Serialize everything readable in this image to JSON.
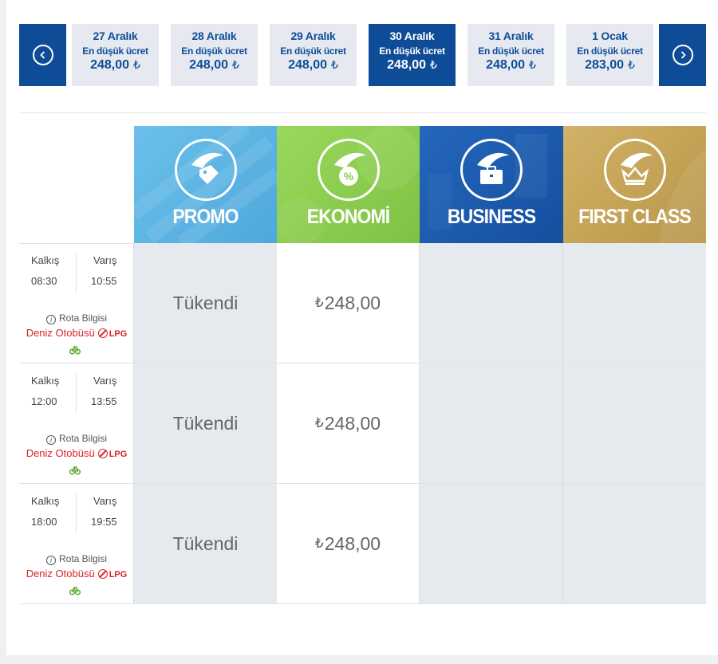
{
  "date_nav": {
    "prev_icon": "chevron-left-circle-icon",
    "next_icon": "chevron-right-circle-icon",
    "days": [
      {
        "date": "27 Aralık",
        "label": "En düşük ücret",
        "price": "248,00",
        "currency": "₺",
        "active": false
      },
      {
        "date": "28 Aralık",
        "label": "En düşük ücret",
        "price": "248,00",
        "currency": "₺",
        "active": false
      },
      {
        "date": "29 Aralık",
        "label": "En düşük ücret",
        "price": "248,00",
        "currency": "₺",
        "active": false
      },
      {
        "date": "30 Aralık",
        "label": "En düşük ücret",
        "price": "248,00",
        "currency": "₺",
        "active": true
      },
      {
        "date": "31 Aralık",
        "label": "En düşük ücret",
        "price": "248,00",
        "currency": "₺",
        "active": false
      },
      {
        "date": "1 Ocak",
        "label": "En düşük ücret",
        "price": "283,00",
        "currency": "₺",
        "active": false
      }
    ]
  },
  "classes": [
    {
      "name": "PROMO",
      "icon": "tag-icon",
      "color": "#5bb4e3"
    },
    {
      "name": "EKONOMİ",
      "icon": "discount-badge-icon",
      "color": "#8ccf4d"
    },
    {
      "name": "BUSINESS",
      "icon": "briefcase-icon",
      "color": "#1d5db3"
    },
    {
      "name": "FIRST CLASS",
      "icon": "crown-icon",
      "color": "#c8a555"
    }
  ],
  "labels": {
    "departure": "Kalkış",
    "arrival": "Varış",
    "route_info": "Rota Bilgisi",
    "ship": "Deniz Otobüsü",
    "lpg": "LPG",
    "sold_out": "Tükendi"
  },
  "trips": [
    {
      "departure_time": "08:30",
      "arrival_time": "10:55",
      "promo": "Tükendi",
      "economy_currency": "₺",
      "economy_price": "248,00"
    },
    {
      "departure_time": "12:00",
      "arrival_time": "13:55",
      "promo": "Tükendi",
      "economy_currency": "₺",
      "economy_price": "248,00"
    },
    {
      "departure_time": "18:00",
      "arrival_time": "19:55",
      "promo": "Tükendi",
      "economy_currency": "₺",
      "economy_price": "248,00"
    }
  ]
}
